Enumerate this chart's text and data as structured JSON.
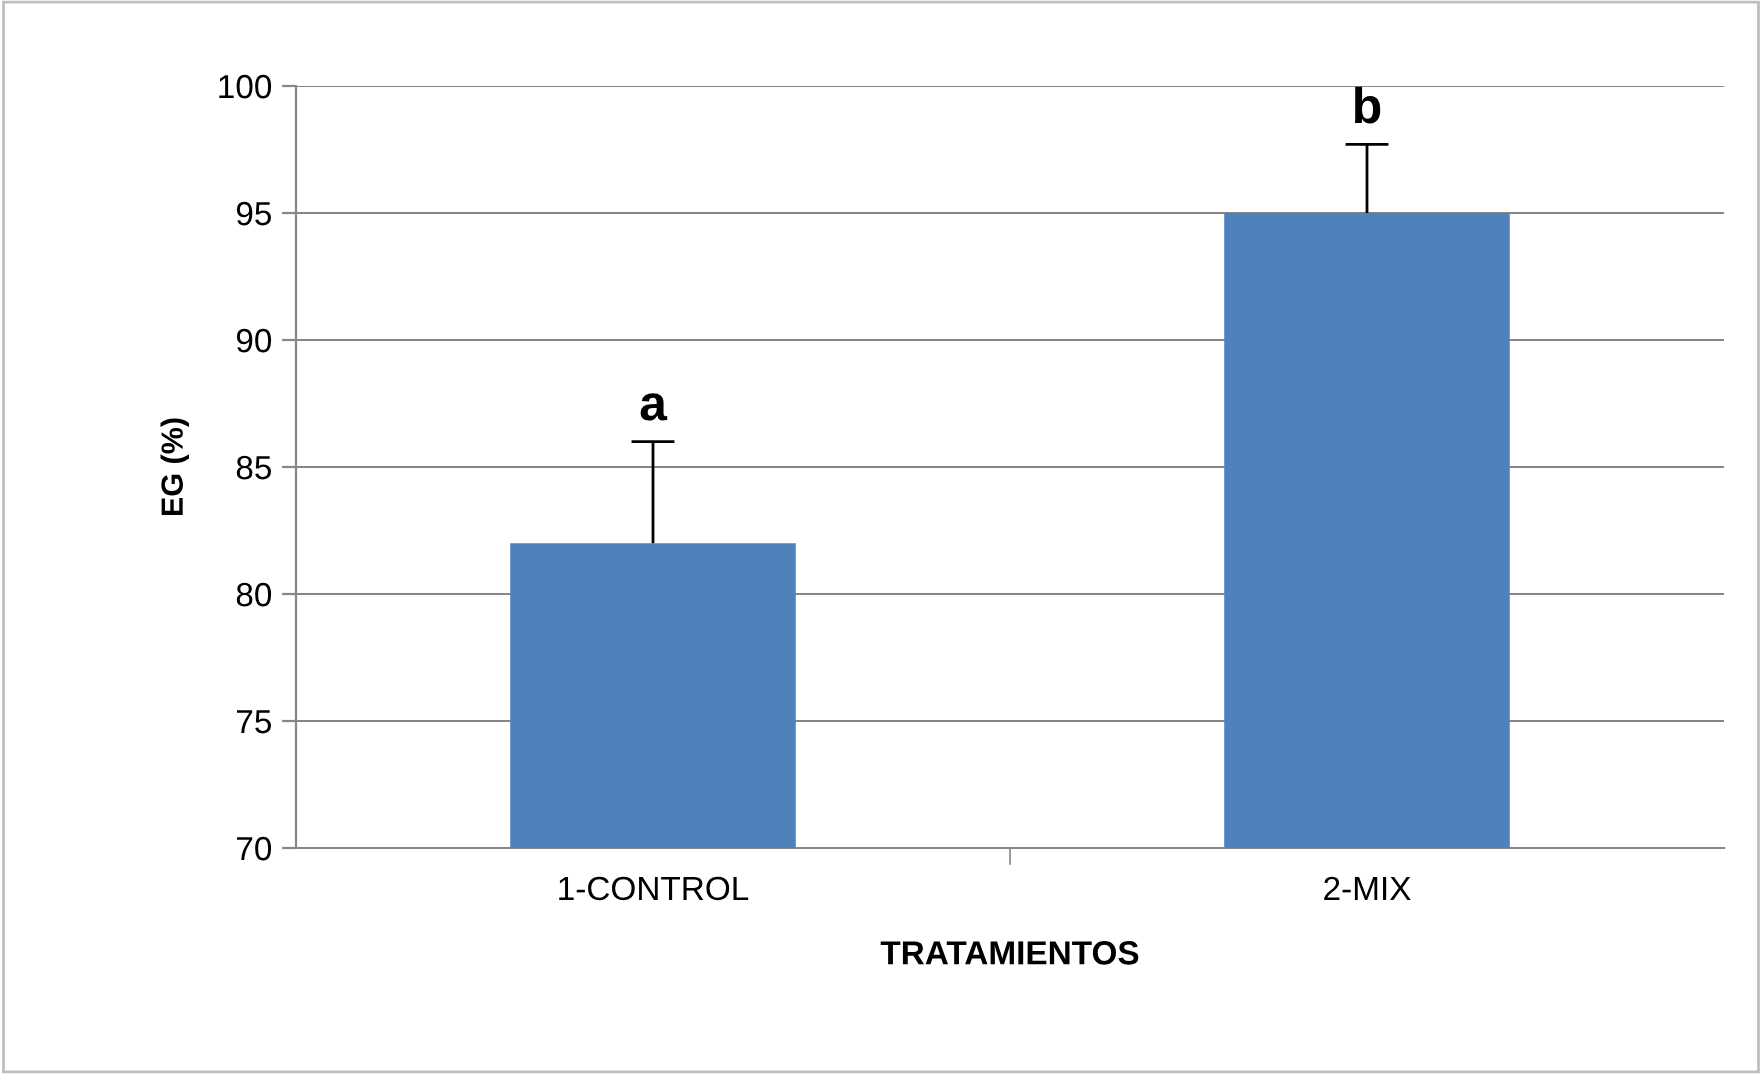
{
  "chart_data": {
    "type": "bar",
    "xlabel": "TRATAMIENTOS",
    "ylabel": "EG (%)",
    "categories": [
      "1-CONTROL",
      "2-MIX"
    ],
    "series": [
      {
        "color": "#4f81bd",
        "values": [
          82,
          95
        ],
        "errors": [
          [
            82,
            86
          ],
          [
            95,
            97.7
          ]
        ]
      }
    ],
    "ylim": [
      70,
      100
    ],
    "yticks": [
      70,
      75,
      80,
      85,
      90,
      95,
      100
    ],
    "grid": "y",
    "annotations": [
      "a",
      "b"
    ]
  }
}
